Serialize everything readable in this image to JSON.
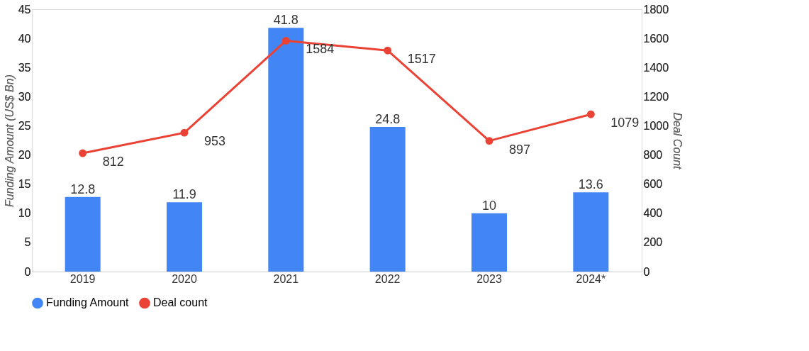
{
  "chart_data": {
    "type": "bar",
    "categories": [
      "2019",
      "2020",
      "2021",
      "2022",
      "2023",
      "2024*"
    ],
    "series": [
      {
        "name": "Funding Amount",
        "color": "#4285f4",
        "values": [
          12.8,
          11.9,
          41.8,
          24.8,
          10,
          13.6
        ]
      },
      {
        "name": "Deal count",
        "type": "line",
        "axis": "y2",
        "color": "#ea4335",
        "values": [
          812,
          953,
          1584,
          1517,
          897,
          1079
        ]
      }
    ],
    "ylabel": "Funding Amount (US$ Bn)",
    "y2label": "Deal Count",
    "ylim": [
      0,
      45
    ],
    "yticks": [
      0,
      5,
      10,
      15,
      20,
      25,
      30,
      35,
      40,
      45
    ],
    "y2lim": [
      0,
      1800
    ],
    "y2ticks": [
      0,
      200,
      400,
      600,
      800,
      1000,
      1200,
      1400,
      1600,
      1800
    ],
    "data_labels": true,
    "legend": "bottom",
    "marker": "circle",
    "grid": false
  }
}
